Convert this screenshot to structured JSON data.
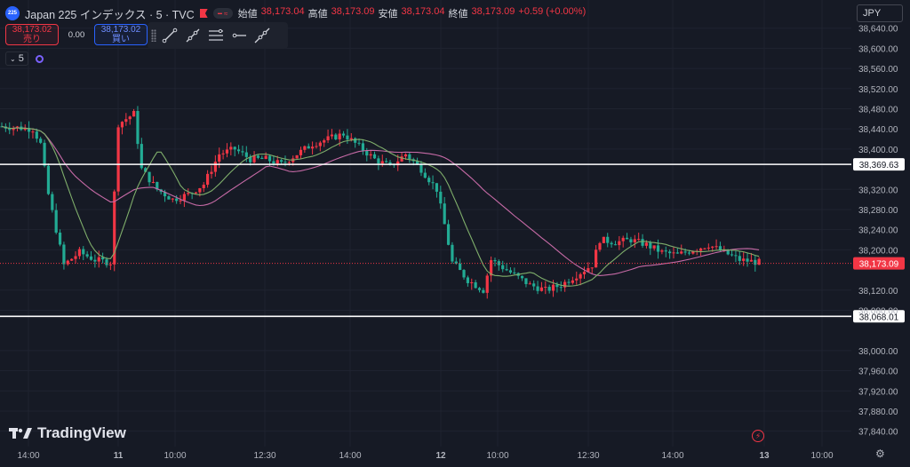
{
  "symbol": {
    "logo_text": "225",
    "title": "Japan 225 インデックス · 5 · TVC",
    "flag_icon": "flag-icon",
    "eye_icon": "visibility-toggle-icon"
  },
  "ohlc": {
    "open_label": "始値",
    "open": "38,173.04",
    "high_label": "高値",
    "high": "38,173.09",
    "low_label": "安値",
    "low": "38,173.04",
    "close_label": "終値",
    "close": "38,173.09",
    "change": "+0.59 (+0.00%)"
  },
  "trade": {
    "sell_price": "38,173.02",
    "sell_label": "売り",
    "spread": "0.00",
    "buy_price": "38,173.02",
    "buy_label": "買い"
  },
  "drawing_tools": [
    "trend-line-icon",
    "ray-icon",
    "parallel-channel-icon",
    "horizontal-ray-icon",
    "extended-line-icon"
  ],
  "interval": {
    "value": "5"
  },
  "currency_button": "JPY",
  "watermark": "TradingView",
  "colors": {
    "background": "#161a25",
    "up": "#f23645",
    "down": "#22ab94",
    "ma_fast": "#7fae6b",
    "ma_slow": "#c66aa6",
    "hline": "#ffffff",
    "grid": "#1f2330",
    "axis_text": "#b2b5be"
  },
  "chart_data": {
    "type": "candlestick",
    "y_axis_labels": [
      "38,640.00",
      "38,600.00",
      "38,560.00",
      "38,520.00",
      "38,480.00",
      "38,440.00",
      "38,400.00",
      "38,320.00",
      "38,280.00",
      "38,240.00",
      "38,200.00",
      "38,120.00",
      "38,080.00",
      "38,000.00",
      "37,960.00",
      "37,920.00",
      "37,880.00",
      "37,840.00"
    ],
    "x_axis_labels": [
      "14:00",
      "11",
      "10:00",
      "12:30",
      "14:00",
      "12",
      "10:00",
      "12:30",
      "14:00",
      "13",
      "10:00"
    ],
    "ylim": [
      37820,
      38680
    ],
    "horizontal_lines": [
      38369.63,
      38068.01
    ],
    "horizontal_line_labels": [
      "38,369.63",
      "38,068.01"
    ],
    "last_price": 38173.09,
    "last_price_label": "38,173.09",
    "anchors": [
      [
        0,
        38445
      ],
      [
        8,
        38440
      ],
      [
        10,
        38410
      ],
      [
        12,
        38310
      ],
      [
        14,
        38240
      ],
      [
        16,
        38170
      ],
      [
        20,
        38195
      ],
      [
        24,
        38180
      ],
      [
        28,
        38175
      ],
      [
        30,
        38450
      ],
      [
        34,
        38470
      ],
      [
        36,
        38360
      ],
      [
        40,
        38320
      ],
      [
        44,
        38300
      ],
      [
        48,
        38310
      ],
      [
        52,
        38330
      ],
      [
        56,
        38390
      ],
      [
        60,
        38400
      ],
      [
        64,
        38380
      ],
      [
        68,
        38380
      ],
      [
        72,
        38370
      ],
      [
        76,
        38390
      ],
      [
        80,
        38410
      ],
      [
        84,
        38420
      ],
      [
        88,
        38430
      ],
      [
        92,
        38405
      ],
      [
        96,
        38380
      ],
      [
        100,
        38365
      ],
      [
        104,
        38390
      ],
      [
        108,
        38360
      ],
      [
        112,
        38320
      ],
      [
        114,
        38250
      ],
      [
        116,
        38175
      ],
      [
        120,
        38140
      ],
      [
        124,
        38120
      ],
      [
        126,
        38180
      ],
      [
        130,
        38160
      ],
      [
        134,
        38140
      ],
      [
        136,
        38130
      ],
      [
        140,
        38120
      ],
      [
        144,
        38130
      ],
      [
        148,
        38150
      ],
      [
        152,
        38170
      ],
      [
        154,
        38220
      ],
      [
        158,
        38215
      ],
      [
        162,
        38220
      ],
      [
        166,
        38210
      ],
      [
        170,
        38195
      ],
      [
        174,
        38190
      ],
      [
        178,
        38200
      ],
      [
        182,
        38210
      ],
      [
        186,
        38195
      ],
      [
        190,
        38180
      ],
      [
        195,
        38175
      ]
    ],
    "candle_count": 196,
    "first_session_end": 29,
    "second_session_start": 29,
    "second_session_end": 110,
    "third_session_start": 110
  }
}
